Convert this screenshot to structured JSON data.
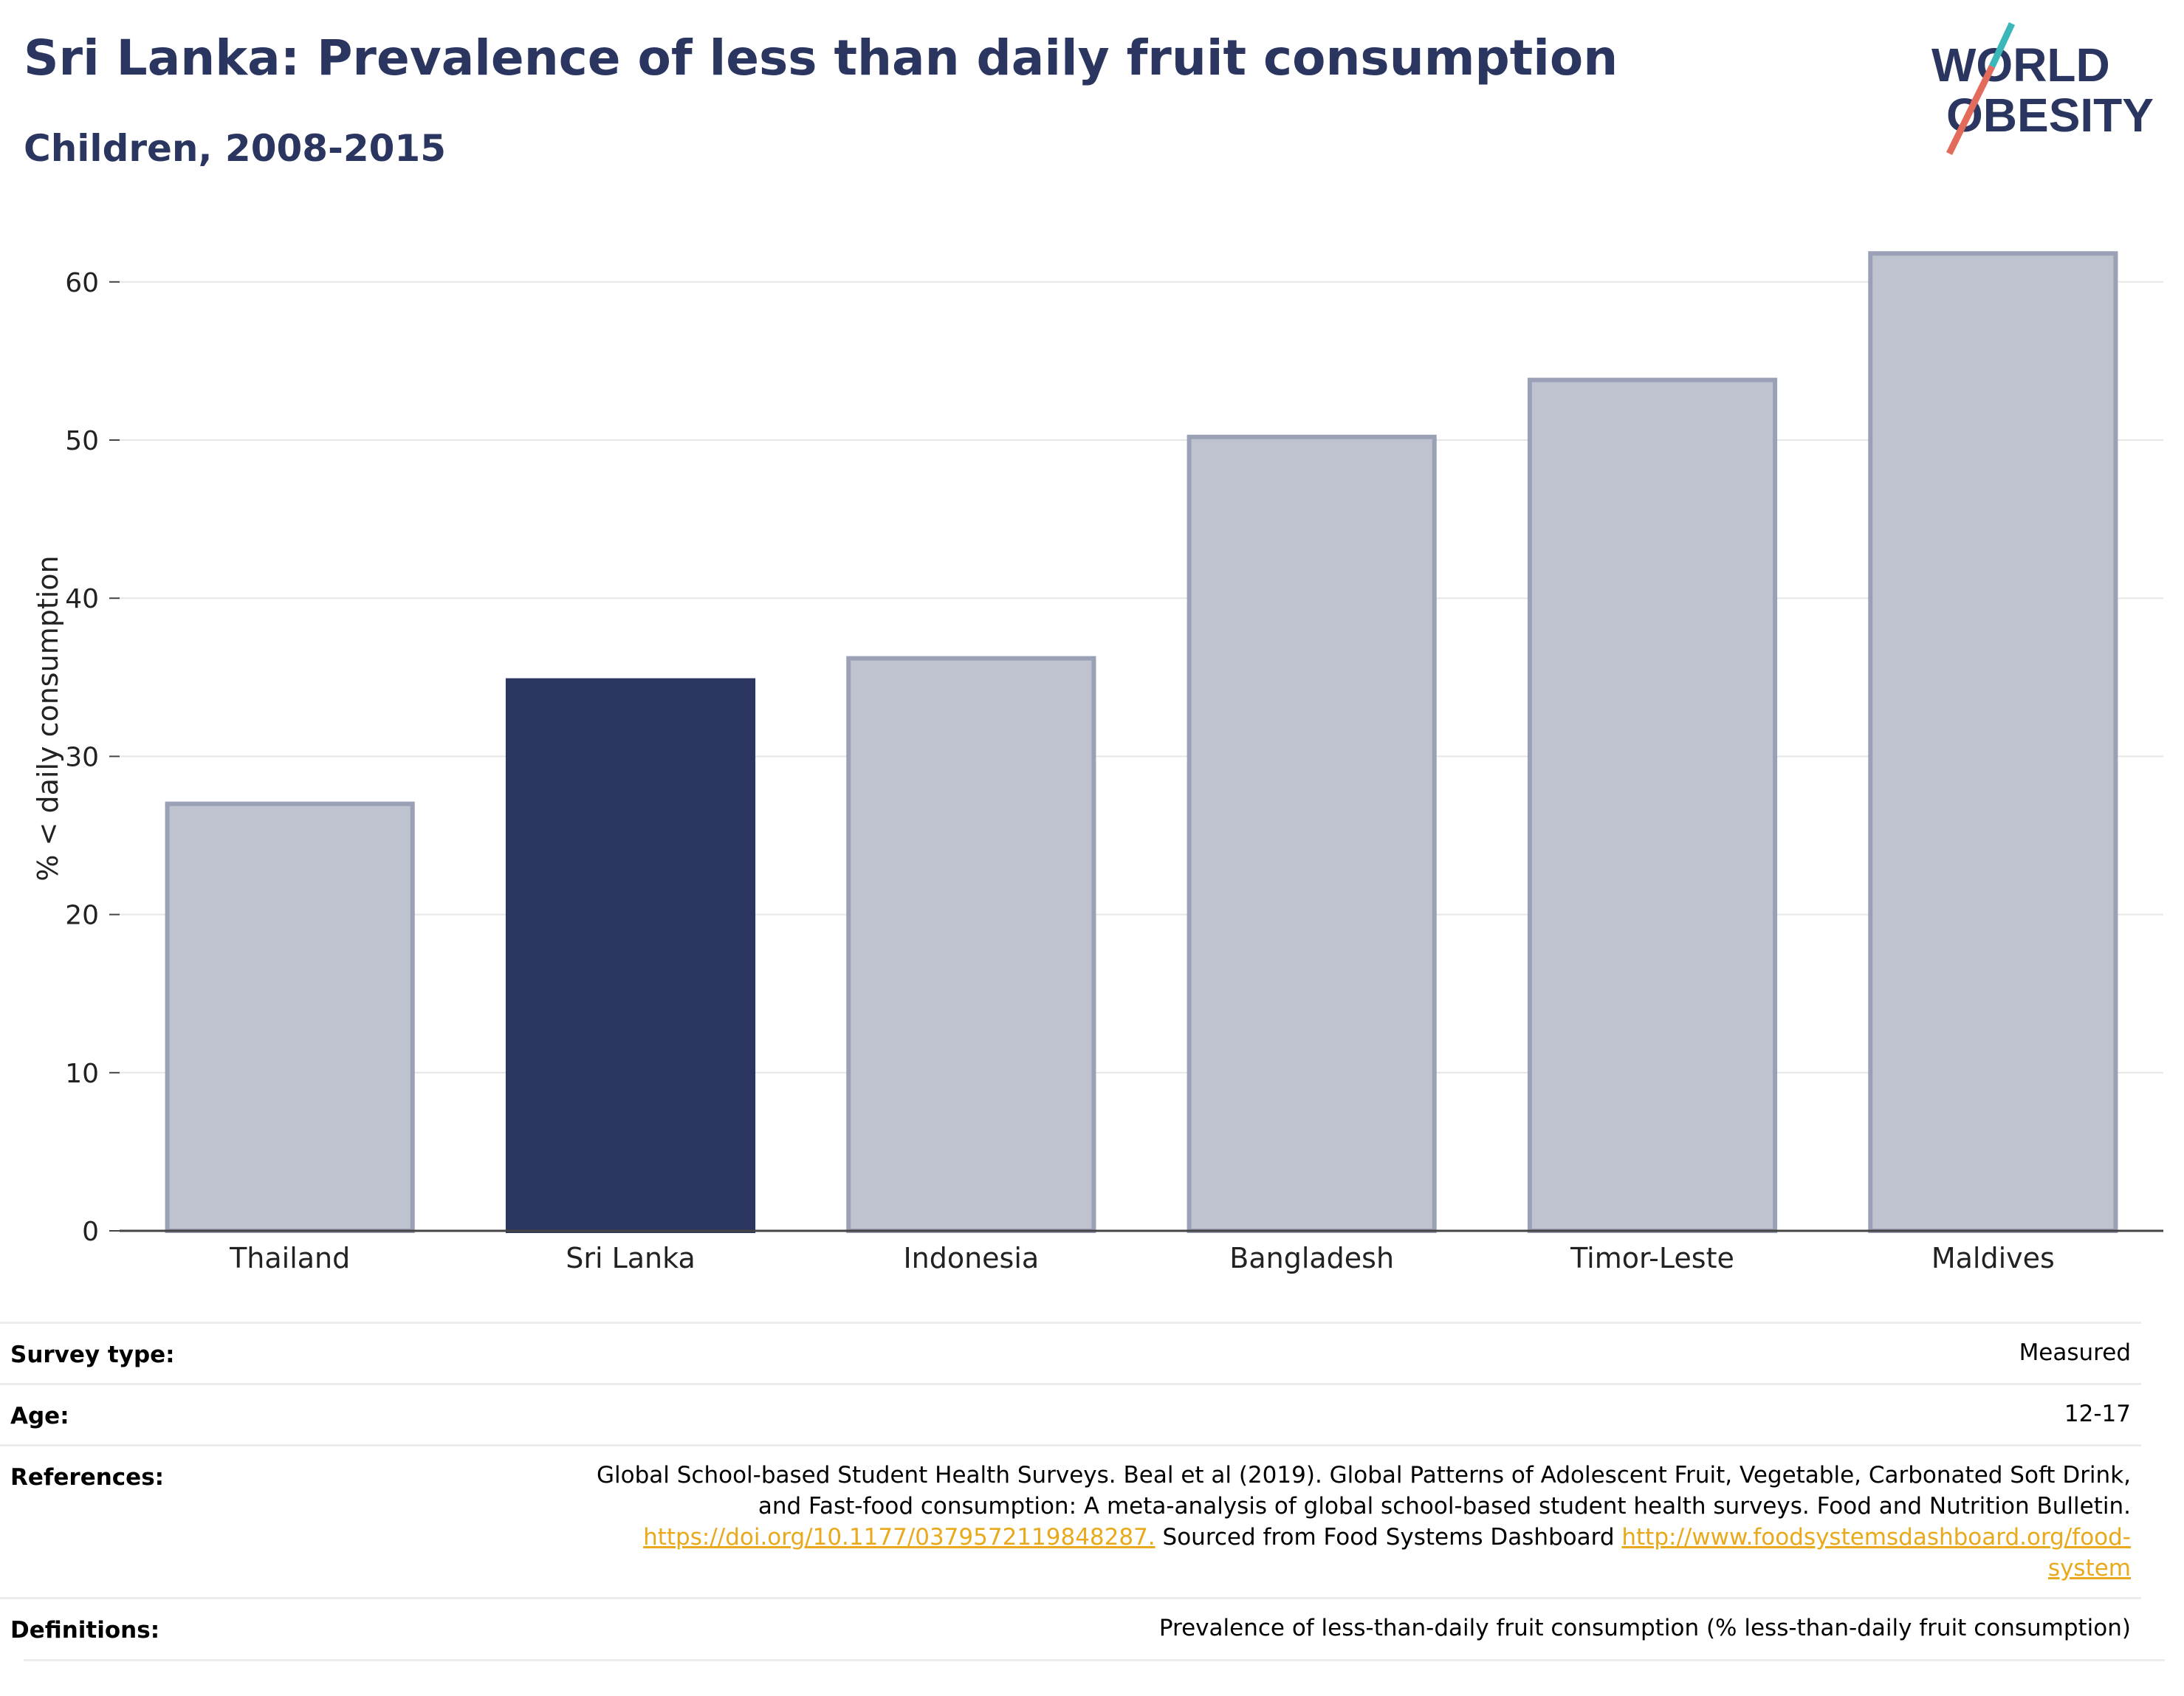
{
  "header": {
    "title": "Sri Lanka: Prevalence of less than daily fruit consumption",
    "subtitle": "Children, 2008-2015"
  },
  "logo": {
    "line1": "WORLD",
    "line2": "OBESITY",
    "accent_teal": "#3bb7b9",
    "accent_coral": "#e36b5c",
    "text_color": "#2b3660"
  },
  "colors": {
    "highlight": "#2b3660",
    "bar": "#bfc3cf",
    "bar_border": "#9aa0b6"
  },
  "chart_data": {
    "type": "bar",
    "categories": [
      "Thailand",
      "Sri Lanka",
      "Indonesia",
      "Bangladesh",
      "Timor-Leste",
      "Maldives"
    ],
    "values": [
      27,
      34.8,
      36.2,
      50.2,
      53.8,
      61.8
    ],
    "highlight": "Sri Lanka",
    "ylabel": "% < daily consumption",
    "ylim": [
      0,
      64
    ],
    "yticks": [
      0,
      10,
      20,
      30,
      40,
      50,
      60
    ],
    "grid": true
  },
  "meta": {
    "survey_type": {
      "label": "Survey type:",
      "value": "Measured"
    },
    "age": {
      "label": "Age:",
      "value": "12-17"
    },
    "references": {
      "label": "References:",
      "line1": "Global School-based Student Health Surveys. Beal et al (2019). Global Patterns of Adolescent Fruit, Vegetable, Carbonated Soft Drink,",
      "line2": "and Fast-food consumption: A meta-analysis of global school-based student health surveys. Food and Nutrition Bulletin.",
      "doi_link": "https://doi.org/10.1177/0379572119848287.",
      "sourced_text": " Sourced from Food Systems Dashboard ",
      "dashboard_link_part1": "http://www.foodsystemsdashboard.org/food-",
      "dashboard_link_part2": "system"
    },
    "definitions": {
      "label": "Definitions:",
      "value": "Prevalence of less-than-daily fruit consumption (% less-than-daily fruit consumption)"
    }
  }
}
